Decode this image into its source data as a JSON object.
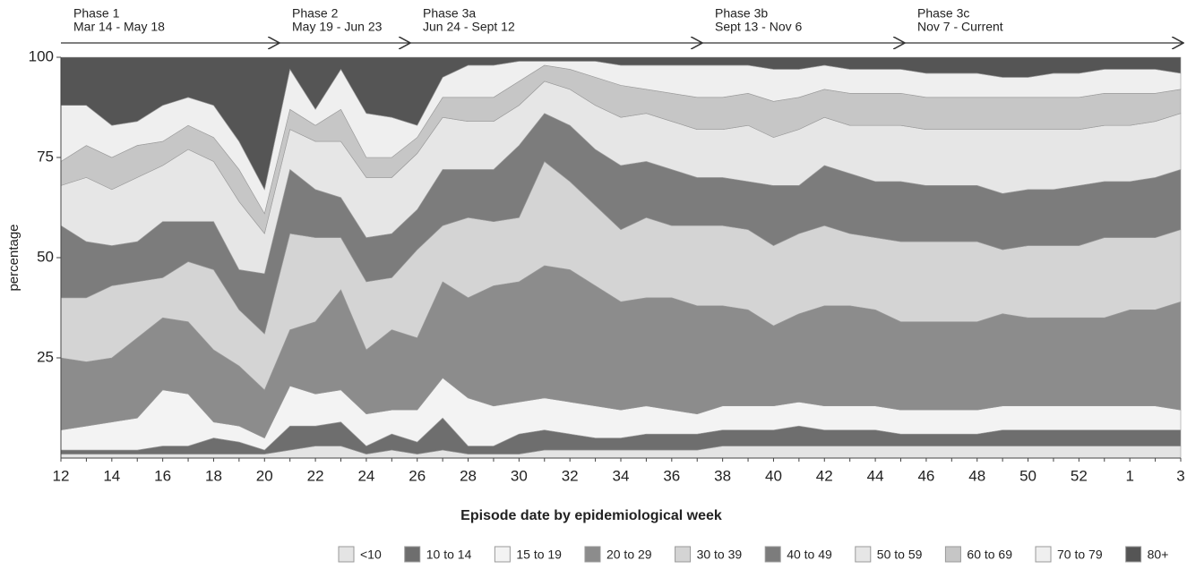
{
  "chart_data": {
    "type": "stacked_area",
    "x_label": "Episode date by epidemiological week",
    "y_label": "percentage",
    "phases": [
      {
        "name": "Phase 1",
        "dates": "Mar 14 - May 18"
      },
      {
        "name": "Phase 2",
        "dates": "May 19 - Jun 23"
      },
      {
        "name": "Phase 3a",
        "dates": "Jun 24 - Sept 12"
      },
      {
        "name": "Phase 3b",
        "dates": "Sept 13 - Nov 6"
      },
      {
        "name": "Phase 3c",
        "dates": "Nov 7 - Current"
      }
    ],
    "categories": [
      "12",
      null,
      "14",
      null,
      "16",
      null,
      "18",
      null,
      "20",
      null,
      "22",
      null,
      "24",
      null,
      "26",
      null,
      "28",
      null,
      "30",
      null,
      "32",
      null,
      "34",
      null,
      "36",
      null,
      "38",
      null,
      "40",
      null,
      "42",
      null,
      "44",
      null,
      "46",
      null,
      "48",
      null,
      "50",
      null,
      "52",
      null,
      "1",
      null,
      "3"
    ],
    "ylim": [
      0,
      100
    ],
    "yticks": [
      25,
      50,
      75,
      100
    ],
    "series": [
      {
        "name": "<10",
        "color": "#e4e4e4",
        "values": [
          1,
          1,
          1,
          1,
          1,
          1,
          1,
          1,
          1,
          2,
          3,
          3,
          1,
          2,
          1,
          2,
          1,
          1,
          1,
          2,
          2,
          2,
          2,
          2,
          2,
          2,
          3,
          3,
          3,
          3,
          3,
          3,
          3,
          3,
          3,
          3,
          3,
          3,
          3,
          3,
          3,
          3,
          3,
          3,
          3
        ]
      },
      {
        "name": "10 to 14",
        "color": "#6e6e6e",
        "values": [
          1,
          1,
          1,
          1,
          2,
          2,
          4,
          3,
          1,
          6,
          5,
          6,
          2,
          4,
          3,
          8,
          2,
          2,
          5,
          5,
          4,
          3,
          3,
          4,
          4,
          4,
          4,
          4,
          4,
          5,
          4,
          4,
          4,
          3,
          3,
          3,
          3,
          4,
          4,
          4,
          4,
          4,
          4,
          4,
          4
        ]
      },
      {
        "name": "15 to 19",
        "color": "#f3f3f3",
        "values": [
          5,
          6,
          7,
          8,
          14,
          13,
          4,
          4,
          3,
          10,
          8,
          8,
          8,
          6,
          8,
          10,
          12,
          10,
          8,
          8,
          8,
          8,
          7,
          7,
          6,
          5,
          6,
          6,
          6,
          6,
          6,
          6,
          6,
          6,
          6,
          6,
          6,
          6,
          6,
          6,
          6,
          6,
          6,
          6,
          5
        ]
      },
      {
        "name": "20 to 29",
        "color": "#8c8c8c",
        "values": [
          18,
          16,
          16,
          20,
          18,
          18,
          18,
          15,
          12,
          14,
          18,
          25,
          16,
          20,
          18,
          24,
          25,
          30,
          30,
          33,
          33,
          30,
          27,
          27,
          28,
          27,
          25,
          24,
          20,
          22,
          25,
          25,
          24,
          22,
          22,
          22,
          22,
          23,
          22,
          22,
          22,
          22,
          24,
          24,
          27
        ]
      },
      {
        "name": "30 to 39",
        "color": "#d4d4d4",
        "values": [
          15,
          16,
          18,
          14,
          10,
          15,
          20,
          14,
          14,
          24,
          21,
          13,
          17,
          13,
          22,
          14,
          20,
          16,
          16,
          26,
          22,
          20,
          18,
          20,
          18,
          20,
          20,
          20,
          20,
          20,
          20,
          18,
          18,
          20,
          20,
          20,
          20,
          16,
          18,
          18,
          18,
          20,
          18,
          18,
          18
        ]
      },
      {
        "name": "40 to 49",
        "color": "#7c7c7c",
        "values": [
          18,
          14,
          10,
          10,
          14,
          10,
          12,
          10,
          15,
          16,
          12,
          10,
          11,
          11,
          10,
          14,
          12,
          13,
          18,
          12,
          14,
          14,
          16,
          14,
          14,
          12,
          12,
          12,
          15,
          12,
          15,
          15,
          14,
          15,
          14,
          14,
          14,
          14,
          14,
          14,
          15,
          14,
          14,
          15,
          15
        ]
      },
      {
        "name": "50 to 59",
        "color": "#e6e6e6",
        "values": [
          10,
          16,
          14,
          16,
          14,
          18,
          15,
          17,
          10,
          10,
          12,
          14,
          15,
          14,
          14,
          13,
          12,
          12,
          10,
          8,
          9,
          11,
          12,
          12,
          12,
          12,
          12,
          14,
          12,
          14,
          12,
          12,
          14,
          14,
          14,
          14,
          14,
          16,
          15,
          15,
          14,
          14,
          14,
          14,
          14
        ]
      },
      {
        "name": "60 to 69",
        "color": "#c6c6c6",
        "values": [
          6,
          8,
          8,
          8,
          6,
          6,
          6,
          8,
          5,
          5,
          4,
          8,
          5,
          5,
          4,
          5,
          6,
          6,
          6,
          4,
          5,
          7,
          8,
          6,
          7,
          8,
          8,
          8,
          9,
          8,
          7,
          8,
          8,
          8,
          8,
          8,
          8,
          8,
          8,
          8,
          8,
          8,
          8,
          7,
          6
        ]
      },
      {
        "name": "70 to 79",
        "color": "#efefef",
        "values": [
          14,
          10,
          8,
          6,
          9,
          7,
          8,
          7,
          6,
          10,
          4,
          10,
          11,
          10,
          3,
          5,
          8,
          8,
          5,
          1,
          2,
          4,
          5,
          6,
          7,
          8,
          8,
          7,
          8,
          7,
          6,
          6,
          6,
          6,
          6,
          6,
          6,
          5,
          5,
          6,
          6,
          6,
          6,
          6,
          4
        ]
      },
      {
        "name": "80+",
        "color": "#555555",
        "values": [
          12,
          12,
          17,
          16,
          12,
          10,
          12,
          21,
          33,
          3,
          13,
          3,
          14,
          15,
          17,
          5,
          2,
          2,
          1,
          1,
          1,
          1,
          2,
          2,
          2,
          2,
          2,
          2,
          3,
          3,
          2,
          3,
          3,
          3,
          4,
          4,
          4,
          5,
          5,
          4,
          4,
          3,
          3,
          3,
          4
        ]
      }
    ]
  }
}
